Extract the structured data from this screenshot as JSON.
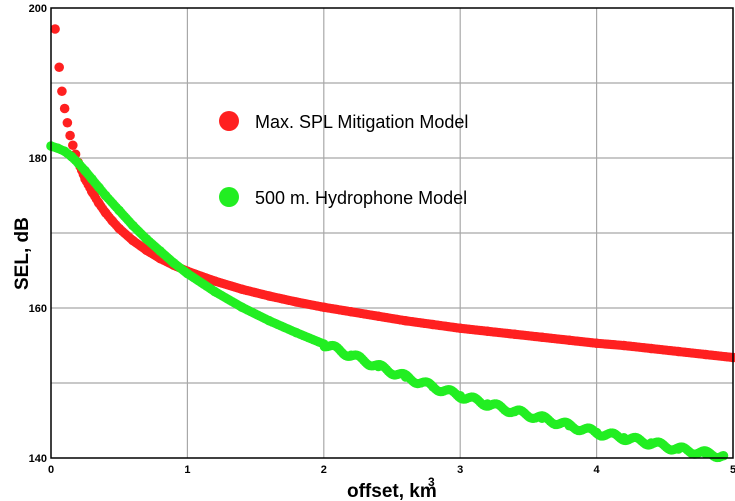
{
  "chart_data": {
    "type": "scatter",
    "xlabel": "offset, km",
    "ylabel": "SEL, dB",
    "xlim": [
      0,
      5
    ],
    "ylim": [
      140,
      200
    ],
    "x_ticks": [
      "0",
      "1",
      "2",
      "3",
      "4",
      "5"
    ],
    "y_ticks": [
      "140",
      "160",
      "180",
      "200"
    ],
    "y_minor_ticks": [
      150,
      170,
      190
    ],
    "grid": true,
    "legend_position": "top-center",
    "series": [
      {
        "name": "Max. SPL Mitigation Model",
        "color": "#ff2020",
        "x": [
          0.03,
          0.06,
          0.08,
          0.1,
          0.12,
          0.14,
          0.16,
          0.18,
          0.2,
          0.25,
          0.3,
          0.35,
          0.4,
          0.45,
          0.5,
          0.6,
          0.7,
          0.8,
          0.9,
          1.0,
          1.2,
          1.4,
          1.6,
          1.8,
          2.0,
          2.2,
          2.4,
          2.6,
          2.8,
          3.0,
          3.2,
          3.4,
          3.6,
          3.8,
          4.0,
          4.2,
          4.4,
          4.6,
          4.8,
          5.0
        ],
        "y": [
          197.2,
          192.1,
          188.9,
          186.6,
          184.7,
          183.0,
          181.7,
          180.5,
          179.4,
          177.2,
          175.5,
          174.0,
          172.7,
          171.6,
          170.6,
          169.0,
          167.7,
          166.6,
          165.7,
          164.9,
          163.6,
          162.5,
          161.6,
          160.8,
          160.1,
          159.5,
          158.9,
          158.3,
          157.8,
          157.3,
          156.9,
          156.5,
          156.1,
          155.7,
          155.3,
          155.0,
          154.6,
          154.2,
          153.8,
          153.4
        ]
      },
      {
        "name": "500 m. Hydrophone Model",
        "color": "#22ee22",
        "x": [
          0.0,
          0.05,
          0.1,
          0.15,
          0.2,
          0.25,
          0.3,
          0.35,
          0.4,
          0.5,
          0.6,
          0.7,
          0.8,
          0.9,
          1.0,
          1.2,
          1.4,
          1.6,
          1.8,
          2.0,
          2.2,
          2.4,
          2.6,
          2.8,
          3.0,
          3.2,
          3.4,
          3.6,
          3.8,
          4.0,
          4.2,
          4.4,
          4.6,
          4.8,
          4.93
        ],
        "y": [
          181.6,
          181.3,
          180.9,
          180.2,
          179.3,
          178.3,
          177.2,
          176.1,
          175.0,
          173.0,
          171.0,
          169.2,
          167.6,
          166.0,
          164.6,
          162.2,
          160.1,
          158.3,
          156.7,
          155.2,
          153.7,
          152.2,
          150.8,
          149.5,
          148.3,
          147.2,
          146.2,
          145.3,
          144.3,
          143.4,
          142.7,
          142.0,
          141.2,
          140.6,
          140.3
        ]
      }
    ]
  }
}
